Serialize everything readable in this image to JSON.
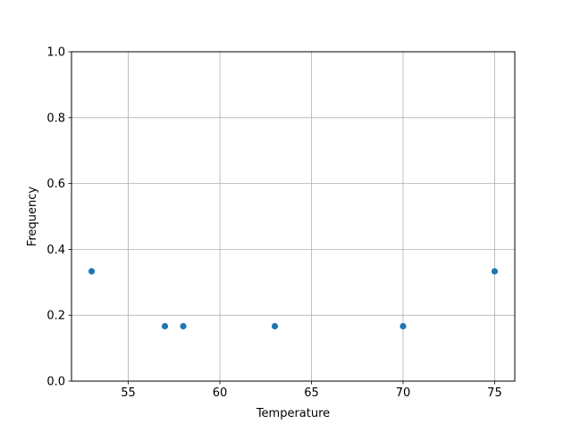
{
  "chart_data": {
    "type": "scatter",
    "title": "",
    "xlabel": "Temperature",
    "ylabel": "Frequency",
    "xlim": [
      51.9,
      76.1
    ],
    "ylim": [
      0,
      1
    ],
    "xticks": [
      55,
      60,
      65,
      70,
      75
    ],
    "yticks": [
      0.0,
      0.2,
      0.4,
      0.6,
      0.8,
      1.0
    ],
    "xtick_labels": [
      "55",
      "60",
      "65",
      "70",
      "75"
    ],
    "ytick_labels": [
      "0.0",
      "0.2",
      "0.4",
      "0.6",
      "0.8",
      "1.0"
    ],
    "grid": true,
    "color": "#1f77b4",
    "points": [
      {
        "x": 53,
        "y": 0.3333
      },
      {
        "x": 57,
        "y": 0.1667
      },
      {
        "x": 58,
        "y": 0.1667
      },
      {
        "x": 63,
        "y": 0.1667
      },
      {
        "x": 70,
        "y": 0.1667
      },
      {
        "x": 75,
        "y": 0.3333
      }
    ]
  }
}
